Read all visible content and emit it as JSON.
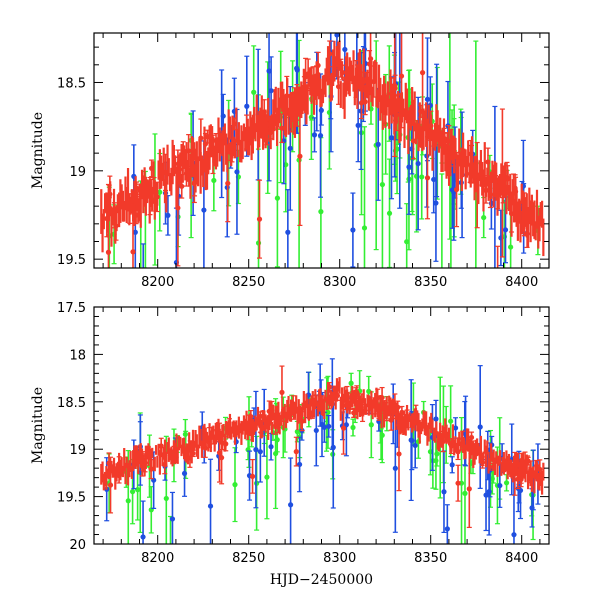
{
  "colors": {
    "green": "#33ee33",
    "blue": "#1f4fe0",
    "red": "#f23a2a"
  },
  "chart_data": [
    {
      "type": "scatter",
      "xlabel": "",
      "ylabel": "Magnitude",
      "xlim": [
        8165,
        8415
      ],
      "ylim": [
        19.55,
        18.22
      ],
      "y_inverted": true,
      "grid": false,
      "x_ticks": [
        "8200",
        "8250",
        "8300",
        "8350",
        "8400"
      ],
      "x_tick_values": [
        8200,
        8250,
        8300,
        8350,
        8400
      ],
      "y_ticks": [
        "18.5",
        "19",
        "19.5"
      ],
      "y_tick_values": [
        18.5,
        19,
        19.5
      ],
      "series": [
        {
          "color": "green",
          "points": 70,
          "has_error_bars": true
        },
        {
          "color": "blue",
          "points": 70,
          "has_error_bars": true
        },
        {
          "color": "red",
          "points": 120,
          "has_error_bars": true
        }
      ]
    },
    {
      "type": "scatter",
      "xlabel": "HJD−2450000",
      "ylabel": "Magnitude",
      "xlim": [
        8165,
        8415
      ],
      "ylim": [
        20.0,
        17.5
      ],
      "y_inverted": true,
      "grid": false,
      "x_ticks": [
        "8200",
        "8250",
        "8300",
        "8350",
        "8400"
      ],
      "x_tick_values": [
        8200,
        8250,
        8300,
        8350,
        8400
      ],
      "y_ticks": [
        "17.5",
        "18",
        "18.5",
        "19",
        "19.5",
        "20"
      ],
      "y_tick_values": [
        17.5,
        18,
        18.5,
        19,
        19.5,
        20
      ],
      "series": [
        {
          "color": "green",
          "points": 70,
          "has_error_bars": true
        },
        {
          "color": "blue",
          "points": 70,
          "has_error_bars": true
        },
        {
          "color": "red",
          "points": 120,
          "has_error_bars": true
        }
      ]
    }
  ]
}
